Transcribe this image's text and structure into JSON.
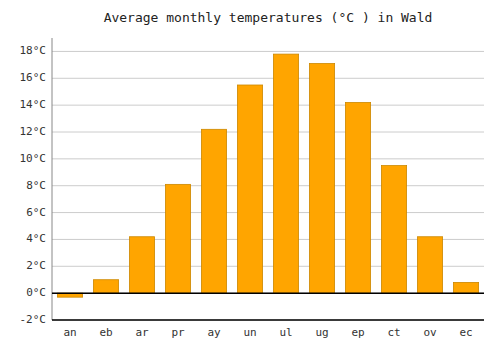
{
  "chart_data": {
    "type": "bar",
    "title": "Average monthly temperatures (°C ) in Wald",
    "categories": [
      "an",
      "eb",
      "ar",
      "pr",
      "ay",
      "un",
      "ul",
      "ug",
      "ep",
      "ct",
      "ov",
      "ec"
    ],
    "values": [
      -0.3,
      1.0,
      4.2,
      8.1,
      12.2,
      15.5,
      17.8,
      17.1,
      14.2,
      9.5,
      4.2,
      0.8
    ],
    "color": "#FFA500",
    "ylim": [
      -2,
      19
    ],
    "yticks": [
      {
        "value": -2,
        "label": "-2°C"
      },
      {
        "value": 0,
        "label": "0°C"
      },
      {
        "value": 2,
        "label": "2°C"
      },
      {
        "value": 4,
        "label": "4°C"
      },
      {
        "value": 6,
        "label": "6°C"
      },
      {
        "value": 8,
        "label": "8°C"
      },
      {
        "value": 10,
        "label": "10°C"
      },
      {
        "value": 12,
        "label": "12°C"
      },
      {
        "value": 14,
        "label": "14°C"
      },
      {
        "value": 16,
        "label": "16°C"
      },
      {
        "value": 18,
        "label": "18°C"
      }
    ],
    "grid": true
  }
}
